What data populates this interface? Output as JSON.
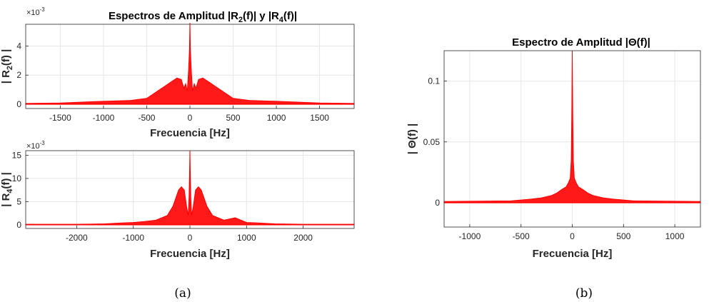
{
  "chart_data": [
    {
      "id": "r2",
      "type": "line",
      "title": "Espectros de Amplitud |R<sub>2</sub>(f)| y |R<sub>4</sub>(f)|",
      "xlabel": "Frecuencia [Hz]",
      "ylabel": "| R<sub>2</sub>(f) |",
      "xlim": [
        -1900,
        1900
      ],
      "ylim": [
        -0.0003,
        0.0055
      ],
      "xticks": [
        -1500,
        -1000,
        -500,
        0,
        500,
        1000,
        1500
      ],
      "yticks": [
        0,
        0.002,
        0.004
      ],
      "ytick_labels": [
        "0",
        "2",
        "4"
      ],
      "y_multiplier": "×10<sup>-3</sup>",
      "grid": true,
      "color": "#ff0000",
      "series": [
        {
          "x": [
            -1900,
            -1500,
            -1000,
            -700,
            -500,
            -400,
            -300,
            -200,
            -150,
            -100,
            -70,
            -50,
            -30,
            -15,
            -5,
            0,
            5,
            15,
            30,
            50,
            70,
            100,
            150,
            200,
            300,
            400,
            500,
            700,
            1000,
            1500,
            1900
          ],
          "y": [
            5e-05,
            8e-05,
            0.0002,
            0.00025,
            0.0004,
            0.0008,
            0.0012,
            0.0016,
            0.0018,
            0.0017,
            0.0011,
            0.0014,
            0.0009,
            0.0024,
            0.0038,
            0.0056,
            0.0038,
            0.0024,
            0.0009,
            0.0014,
            0.0011,
            0.0017,
            0.0018,
            0.0016,
            0.0012,
            0.0008,
            0.0004,
            0.00025,
            0.0002,
            8e-05,
            5e-05
          ]
        }
      ]
    },
    {
      "id": "r4",
      "type": "line",
      "xlabel": "Frecuencia [Hz]",
      "ylabel": "| R<sub>4</sub>(f) |",
      "xlim": [
        -2900,
        2900
      ],
      "ylim": [
        -0.0008,
        0.016
      ],
      "xticks": [
        -2000,
        -1000,
        0,
        1000,
        2000
      ],
      "yticks": [
        0,
        0.005,
        0.01,
        0.015
      ],
      "ytick_labels": [
        "0",
        "5",
        "10",
        "15"
      ],
      "y_multiplier": "×10<sup>-3</sup>",
      "grid": true,
      "color": "#ff0000",
      "series": [
        {
          "x": [
            -2900,
            -2000,
            -1500,
            -1200,
            -1000,
            -800,
            -600,
            -400,
            -300,
            -200,
            -150,
            -100,
            -60,
            -30,
            -15,
            -5,
            0,
            5,
            15,
            30,
            60,
            100,
            150,
            200,
            300,
            400,
            600,
            800,
            1000,
            1200,
            1500,
            2000,
            2900
          ],
          "y": [
            0.0001,
            0.0001,
            0.0002,
            0.0004,
            0.0005,
            0.0007,
            0.001,
            0.002,
            0.004,
            0.0075,
            0.0082,
            0.0075,
            0.004,
            0.002,
            0.006,
            0.012,
            0.016,
            0.012,
            0.006,
            0.002,
            0.004,
            0.0075,
            0.0082,
            0.0075,
            0.004,
            0.002,
            0.001,
            0.0015,
            0.0005,
            0.0004,
            0.0002,
            0.0001,
            0.0001
          ]
        }
      ]
    },
    {
      "id": "theta",
      "type": "line",
      "title": "Espectro de Amplitud |Θ(f)|",
      "xlabel": "Frecuencia [Hz]",
      "ylabel": "| Θ(f) |",
      "xlim": [
        -1250,
        1250
      ],
      "ylim": [
        -0.02,
        0.125
      ],
      "xticks": [
        -1000,
        -500,
        0,
        500,
        1000
      ],
      "yticks": [
        0,
        0.05,
        0.1
      ],
      "ytick_labels": [
        "0",
        "0.05",
        "0.1"
      ],
      "grid": true,
      "color": "#ff0000",
      "series": [
        {
          "x": [
            -1250,
            -1000,
            -600,
            -400,
            -300,
            -200,
            -150,
            -100,
            -60,
            -40,
            -20,
            -10,
            -5,
            0,
            5,
            10,
            20,
            40,
            60,
            100,
            150,
            200,
            300,
            400,
            600,
            1000,
            1250
          ],
          "y": [
            0.001,
            0.0012,
            0.0015,
            0.003,
            0.004,
            0.006,
            0.008,
            0.011,
            0.013,
            0.016,
            0.02,
            0.035,
            0.07,
            0.125,
            0.07,
            0.035,
            0.02,
            0.016,
            0.013,
            0.011,
            0.008,
            0.006,
            0.004,
            0.003,
            0.0015,
            0.0012,
            0.001
          ]
        }
      ]
    }
  ],
  "captions": {
    "a": "(a)",
    "b": "(b)"
  }
}
